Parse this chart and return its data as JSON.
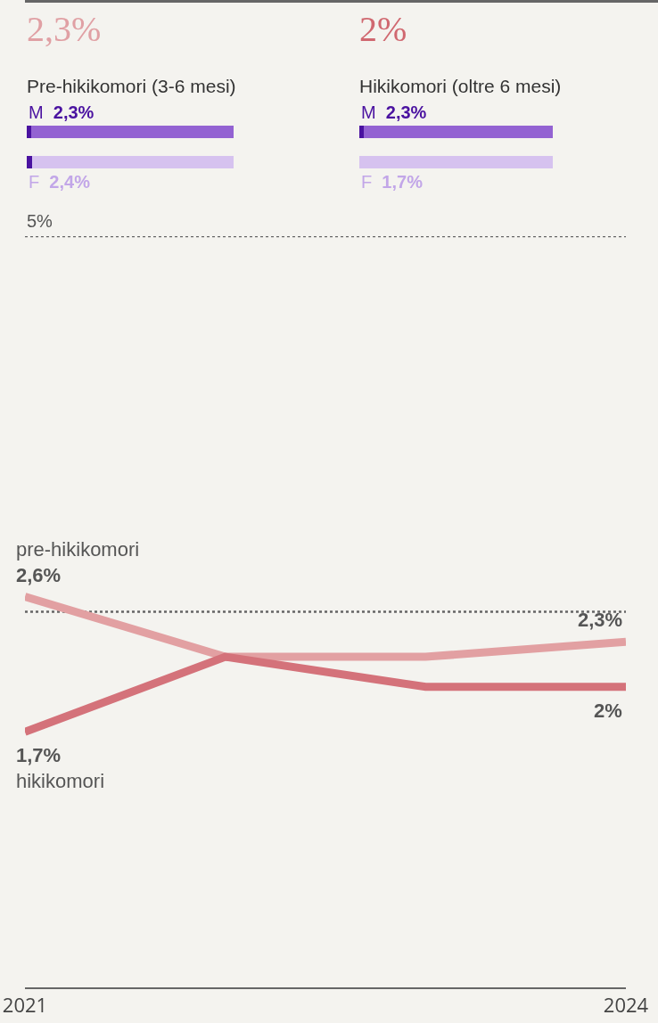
{
  "chart_data": [
    {
      "type": "bar",
      "orientation": "horizontal",
      "stacked": true,
      "title": "2,3%",
      "subtitle": "Pre-hikikomori (3-6 mesi)",
      "categories": [
        "M",
        "F"
      ],
      "xlim": [
        0,
        100
      ],
      "tick_labels": false,
      "legend": false,
      "series": [
        {
          "colors": [
            "#4a12a0",
            "#4a12a0"
          ],
          "values": [
            2.3,
            2.4
          ],
          "value_labels": [
            "2,3%",
            "2,4%"
          ]
        },
        {
          "colors": [
            "#9362d2",
            "#d6c2ef"
          ],
          "values": [
            97.7,
            97.6
          ]
        }
      ]
    },
    {
      "type": "bar",
      "orientation": "horizontal",
      "stacked": true,
      "title": "2%",
      "subtitle": "Hikikomori (oltre 6 mesi)",
      "categories": [
        "M",
        "F"
      ],
      "xlim": [
        0,
        100
      ],
      "tick_labels": false,
      "legend": false,
      "series": [
        {
          "colors": [
            "#4a12a0",
            "#d6c2ef"
          ],
          "values": [
            2.3,
            1.7
          ],
          "value_labels": [
            "2,3%",
            "1,7%"
          ]
        },
        {
          "colors": [
            "#9362d2",
            "#d6c2ef"
          ],
          "values": [
            97.7,
            98.3
          ]
        }
      ]
    },
    {
      "type": "line",
      "x": [
        2021,
        2022,
        2023,
        2024
      ],
      "xlim": [
        2021,
        2024
      ],
      "xticks": [
        2021,
        2024
      ],
      "ylim": [
        0,
        5
      ],
      "legend": false,
      "marker": "none",
      "line_style": "solid",
      "ref_lines": [
        {
          "axis": "y",
          "value": 5,
          "label": "5%",
          "line_style": "dotted"
        },
        {
          "axis": "y",
          "value": 2.5,
          "line_style": "dotted"
        }
      ],
      "series": [
        {
          "name": "pre-hikikomori",
          "color": "#e2a0a2",
          "values": [
            2.6,
            2.2,
            2.2,
            2.3
          ],
          "value_labels": [
            "2,6%",
            null,
            null,
            "2,3%"
          ]
        },
        {
          "name": "hikikomori",
          "color": "#d4727a",
          "values": [
            1.7,
            2.2,
            2.0,
            2.0
          ],
          "value_labels": [
            "1,7%",
            null,
            null,
            "2%"
          ]
        }
      ]
    }
  ]
}
